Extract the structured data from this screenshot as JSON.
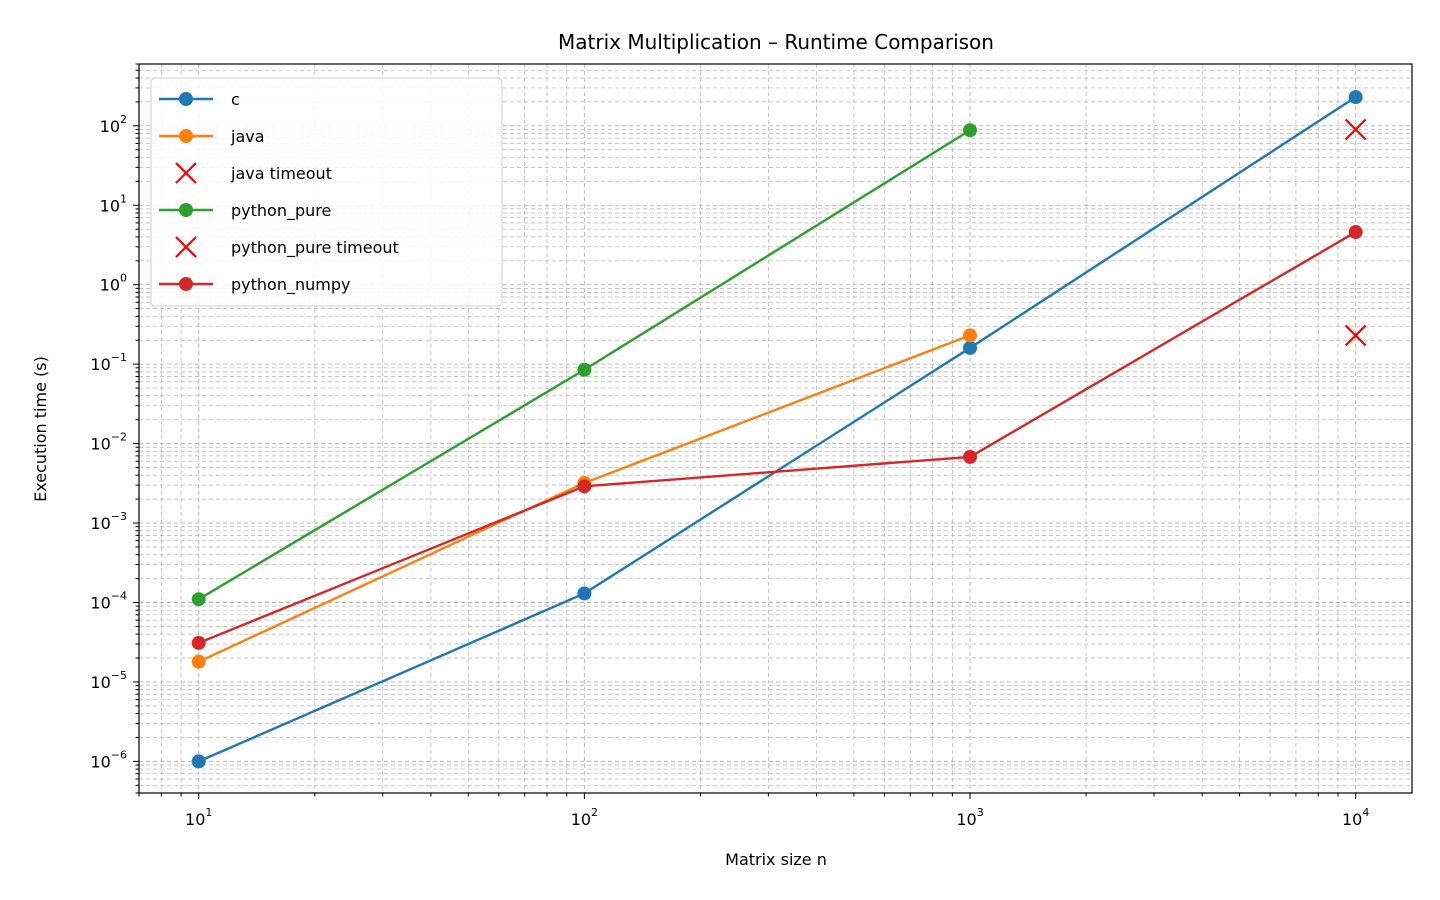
{
  "chart_data": {
    "type": "line",
    "title": "Matrix Multiplication – Runtime Comparison",
    "xlabel": "Matrix size n",
    "ylabel": "Execution time (s)",
    "xscale": "log",
    "yscale": "log",
    "xlim": [
      7,
      14000
    ],
    "ylim": [
      4e-07,
      600
    ],
    "grid": true,
    "legend_position": "top-left",
    "x_ticks": [
      {
        "value": 10,
        "base": "10",
        "exp": "1"
      },
      {
        "value": 100,
        "base": "10",
        "exp": "2"
      },
      {
        "value": 1000,
        "base": "10",
        "exp": "3"
      },
      {
        "value": 10000,
        "base": "10",
        "exp": "4"
      }
    ],
    "y_ticks": [
      {
        "value": 1e-06,
        "base": "10",
        "exp": "−6"
      },
      {
        "value": 1e-05,
        "base": "10",
        "exp": "−5"
      },
      {
        "value": 0.0001,
        "base": "10",
        "exp": "−4"
      },
      {
        "value": 0.001,
        "base": "10",
        "exp": "−3"
      },
      {
        "value": 0.01,
        "base": "10",
        "exp": "−2"
      },
      {
        "value": 0.1,
        "base": "10",
        "exp": "−1"
      },
      {
        "value": 1,
        "base": "10",
        "exp": "0"
      },
      {
        "value": 10,
        "base": "10",
        "exp": "1"
      },
      {
        "value": 100,
        "base": "10",
        "exp": "2"
      }
    ],
    "series": [
      {
        "name": "c",
        "kind": "line",
        "color": "#1f77b4",
        "x": [
          10,
          100,
          1000,
          10000
        ],
        "y": [
          1e-06,
          0.00013,
          0.16,
          230
        ]
      },
      {
        "name": "java",
        "kind": "line",
        "color": "#ff7f0e",
        "x": [
          10,
          100,
          1000
        ],
        "y": [
          1.8e-05,
          0.0032,
          0.23
        ]
      },
      {
        "name": "java timeout",
        "kind": "marker-x",
        "color": "#ff0000",
        "x": [
          10000
        ],
        "y": [
          90
        ]
      },
      {
        "name": "python_pure",
        "kind": "line",
        "color": "#2ca02c",
        "x": [
          10,
          100,
          1000
        ],
        "y": [
          0.00011,
          0.085,
          88
        ]
      },
      {
        "name": "python_pure timeout",
        "kind": "marker-x",
        "color": "#ff0000",
        "x": [
          10000
        ],
        "y": [
          0.23
        ]
      },
      {
        "name": "python_numpy",
        "kind": "line",
        "color": "#d62728",
        "x": [
          10,
          100,
          1000,
          10000
        ],
        "y": [
          3.1e-05,
          0.0029,
          0.0068,
          4.6
        ]
      }
    ]
  }
}
